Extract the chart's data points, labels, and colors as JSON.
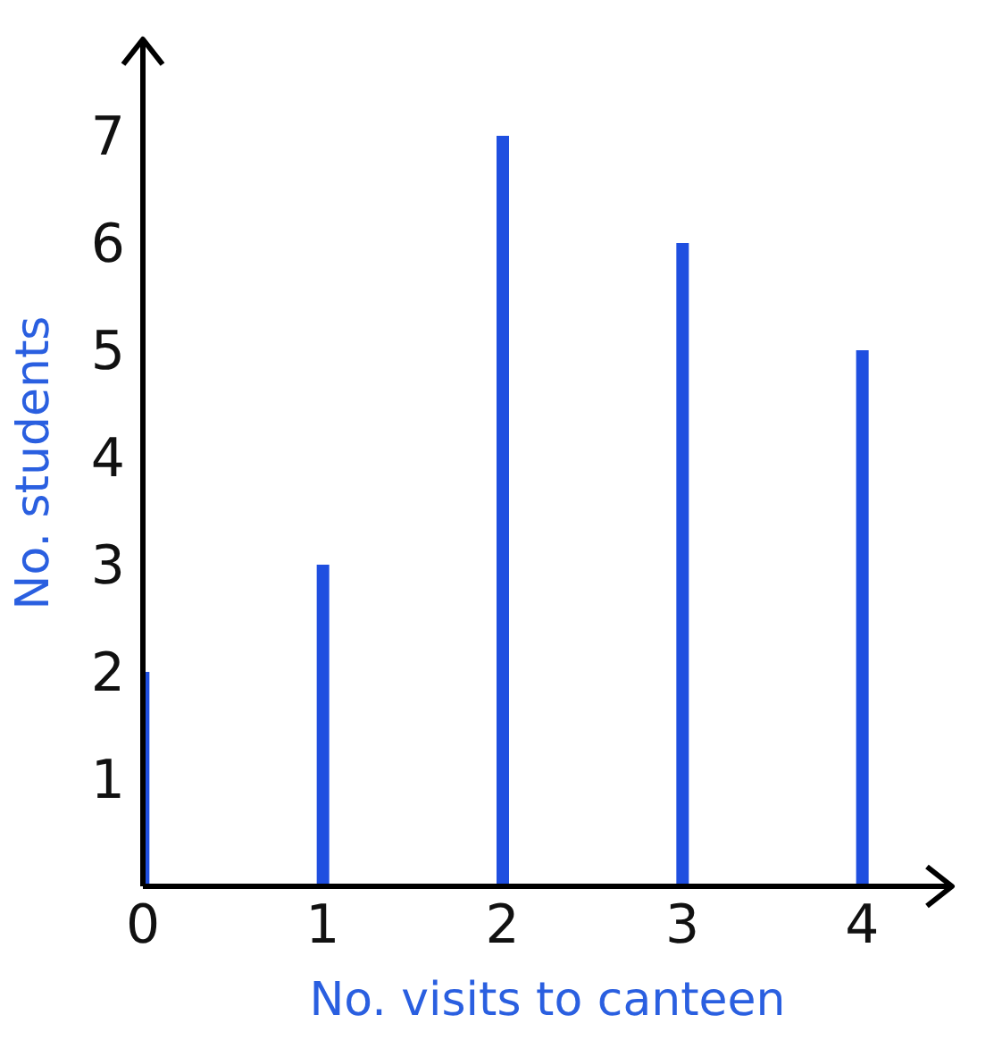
{
  "chart_data": {
    "type": "bar",
    "xlabel": "No. visits to canteen",
    "ylabel": "No. students",
    "x": [
      0,
      1,
      2,
      3,
      4
    ],
    "series": [
      {
        "color": "#1f4fe0",
        "values": [
          2,
          3,
          7,
          6,
          5
        ]
      }
    ],
    "xlim": [
      0,
      4.5
    ],
    "xticks": [
      0,
      1,
      2,
      3,
      4
    ],
    "ylim": [
      0,
      7.9
    ],
    "yticks": [
      1,
      2,
      3,
      4,
      5,
      6,
      7
    ],
    "grid": false,
    "legend": false
  }
}
